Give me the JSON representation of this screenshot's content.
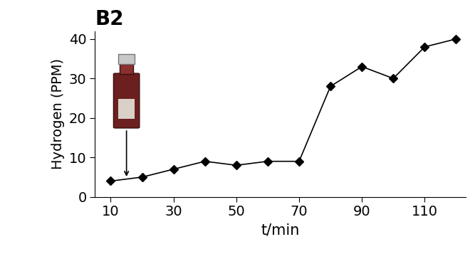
{
  "chart_data": {
    "type": "line",
    "title": "B2",
    "x_label": "t/min",
    "y_label": "Hydrogen (PPM)",
    "x": [
      10,
      20,
      30,
      40,
      50,
      60,
      70,
      80,
      90,
      100,
      110,
      120
    ],
    "values": [
      4,
      5,
      7,
      9,
      8,
      9,
      9,
      28,
      33,
      30,
      38,
      40
    ],
    "color": "#000000",
    "marker": "diamond",
    "line_style": "solid",
    "xlim": [
      5,
      123
    ],
    "ylim": [
      0,
      42
    ],
    "xticks": [
      10,
      30,
      50,
      70,
      90,
      110
    ],
    "yticks": [
      0,
      10,
      20,
      30,
      40
    ],
    "grid": false
  }
}
